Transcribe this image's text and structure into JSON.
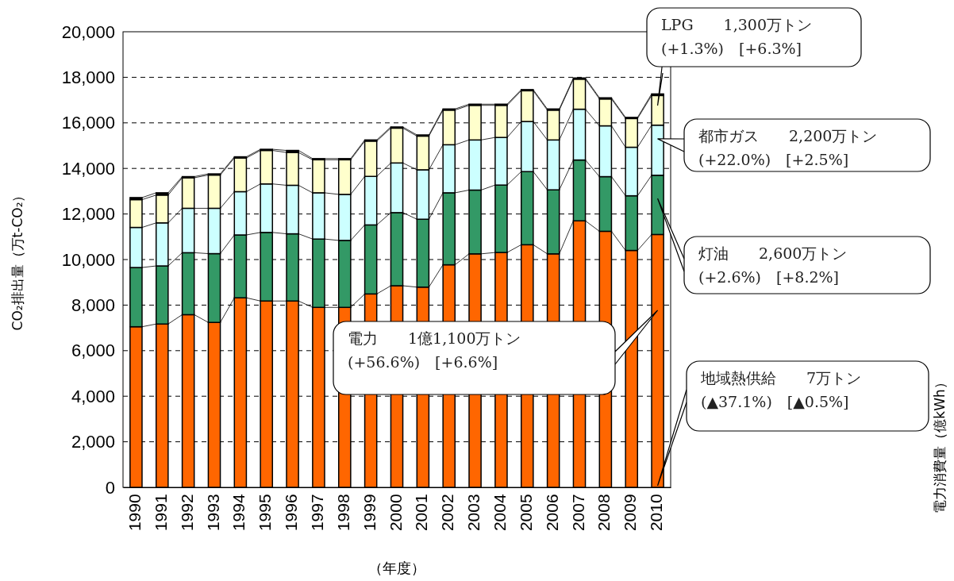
{
  "chart_data": {
    "type": "bar",
    "stacked": true,
    "xlabel": "（年度）",
    "ylabel": "CO₂排出量（万t-CO₂）",
    "categories": [
      "1990",
      "1991",
      "1992",
      "1993",
      "1994",
      "1995",
      "1996",
      "1997",
      "1998",
      "1999",
      "2000",
      "2001",
      "2002",
      "2003",
      "2004",
      "2005",
      "2006",
      "2007",
      "2008",
      "2009",
      "2010"
    ],
    "series": [
      {
        "color": "#ff6600",
        "values": [
          7050,
          7170,
          7580,
          7240,
          8320,
          8180,
          8180,
          7900,
          7900,
          8490,
          8850,
          8790,
          9770,
          10250,
          10310,
          10650,
          10250,
          11700,
          11240,
          10400,
          11100
        ]
      },
      {
        "color": "#339966",
        "values": [
          2600,
          2550,
          2720,
          3020,
          2760,
          3010,
          2950,
          3000,
          2940,
          3030,
          3210,
          2980,
          3160,
          2800,
          2960,
          3210,
          2810,
          2670,
          2400,
          2400,
          2600
        ]
      },
      {
        "color": "#ccffff",
        "values": [
          1760,
          1890,
          1950,
          1990,
          1900,
          2130,
          2130,
          2030,
          2020,
          2130,
          2180,
          2170,
          2110,
          2200,
          2090,
          2200,
          2190,
          2230,
          2230,
          2130,
          2200
        ]
      },
      {
        "color": "#ffffcc",
        "values": [
          1220,
          1220,
          1340,
          1460,
          1480,
          1470,
          1440,
          1450,
          1520,
          1550,
          1530,
          1480,
          1520,
          1520,
          1410,
          1350,
          1310,
          1320,
          1180,
          1260,
          1300
        ]
      },
      {
        "color": "#000000",
        "values": [
          90,
          100,
          50,
          50,
          50,
          50,
          90,
          50,
          50,
          50,
          50,
          50,
          50,
          50,
          50,
          50,
          50,
          50,
          50,
          50,
          70
        ]
      }
    ],
    "ylim": [
      0,
      20000
    ],
    "yticks": [
      {
        "value": 0,
        "label": "0"
      },
      {
        "value": 2000,
        "label": "2,000"
      },
      {
        "value": 4000,
        "label": "4,000"
      },
      {
        "value": 6000,
        "label": "6,000"
      },
      {
        "value": 8000,
        "label": "8,000"
      },
      {
        "value": 10000,
        "label": "10,000"
      },
      {
        "value": 12000,
        "label": "12,000"
      },
      {
        "value": 14000,
        "label": "14,000"
      },
      {
        "value": 16000,
        "label": "16,000"
      },
      {
        "value": 18000,
        "label": "18,000"
      },
      {
        "value": 20000,
        "label": "20,000"
      }
    ],
    "grid": "y",
    "annotations": [
      "電力　　1億1,100万トン\n(+56.6%)　[+6.6%]",
      {
        "text": "灯油　　2,600万トン\n(+2.6%)　[+8.2%]",
        "x": "2010",
        "y": 12680
      },
      {
        "text": "都市ガス　　2,200万トン\n(+22.0%)　[+2.5%]",
        "x": "2010",
        "y": 15300
      },
      {
        "text": "LPG　　1,300万トン\n(+1.3%)　[+6.3%]",
        "x": "2010",
        "y": 16760
      },
      {
        "text": "地域熱供給　　7万トン\n(▲37.1%)　[▲0.5%]",
        "x": "2010",
        "y": 70
      },
      "電力消費量（億kWh）"
    ]
  }
}
